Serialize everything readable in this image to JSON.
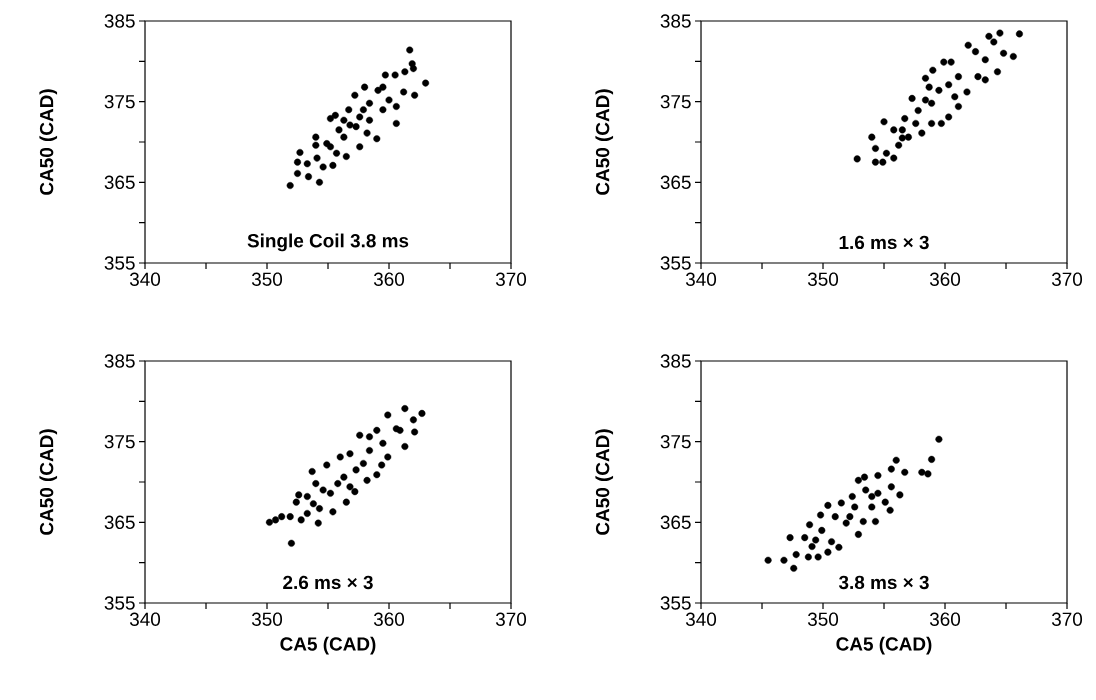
{
  "chart_data": [
    {
      "type": "scatter",
      "color": "#000000",
      "ylabel": "CA50 (CAD)",
      "annotations": [
        "Single Coil 3.8 ms"
      ],
      "xlim": [
        340,
        370
      ],
      "ylim": [
        355,
        385
      ],
      "xticks": [
        340,
        {
          "value": 345,
          "label": null
        },
        350,
        {
          "value": 355,
          "label": null
        },
        360,
        {
          "value": 365,
          "label": null
        },
        370
      ],
      "yticks": [
        355,
        {
          "value": 360,
          "label": null
        },
        365,
        {
          "value": 370,
          "label": null
        },
        375,
        {
          "value": 380,
          "label": null
        },
        385
      ],
      "x": [
        351.9,
        354.3,
        352.5,
        353.4,
        352.5,
        352.7,
        354.0,
        355.2,
        355.6,
        355.4,
        356.5,
        357.2,
        358.0,
        357.6,
        359.0,
        359.1,
        359.7,
        360.5,
        361.7,
        361.9,
        362.0,
        363.0,
        362.1,
        360.6,
        360.6,
        361.3,
        359.5,
        358.4,
        356.8,
        357.3,
        356.3,
        355.7,
        354.9,
        354.1,
        353.3,
        354.6,
        357.9,
        358.2,
        356.7,
        360.0,
        361.2,
        359.5,
        357.6,
        356.3,
        355.2,
        354.0,
        355.9,
        358.4
      ],
      "values": [
        364.6,
        365.0,
        366.1,
        365.7,
        367.5,
        368.7,
        370.6,
        372.9,
        373.3,
        367.1,
        368.2,
        375.8,
        376.8,
        369.4,
        370.4,
        376.4,
        378.3,
        378.3,
        381.4,
        379.7,
        379.1,
        377.3,
        375.8,
        372.3,
        374.4,
        378.7,
        374.0,
        372.7,
        372.1,
        371.9,
        370.6,
        368.6,
        369.8,
        368.0,
        367.3,
        366.9,
        374.0,
        371.1,
        374.0,
        375.2,
        376.2,
        376.8,
        373.1,
        372.7,
        369.4,
        369.6,
        371.5,
        374.8
      ]
    },
    {
      "type": "scatter",
      "color": "#000000",
      "ylabel": "CA50 (CAD)",
      "annotations": [
        "1.6 ms × 3"
      ],
      "xlim": [
        340,
        370
      ],
      "ylim": [
        355,
        385
      ],
      "xticks": [
        340,
        {
          "value": 345,
          "label": null
        },
        350,
        {
          "value": 355,
          "label": null
        },
        360,
        {
          "value": 365,
          "label": null
        },
        370
      ],
      "yticks": [
        355,
        {
          "value": 360,
          "label": null
        },
        365,
        {
          "value": 370,
          "label": null
        },
        375,
        {
          "value": 380,
          "label": null
        },
        385
      ],
      "x": [
        352.8,
        354.3,
        354.9,
        354.3,
        354.0,
        355.0,
        355.8,
        355.2,
        356.2,
        355.8,
        356.7,
        357.3,
        358.4,
        359.0,
        359.9,
        360.5,
        361.9,
        363.6,
        364.5,
        366.1,
        365.6,
        364.3,
        363.3,
        361.8,
        361.1,
        360.3,
        359.7,
        358.9,
        358.1,
        357.0,
        357.8,
        358.9,
        359.5,
        360.3,
        361.1,
        362.5,
        363.3,
        364.8,
        364.0,
        358.4,
        356.5,
        357.6,
        358.7,
        360.8,
        362.7,
        356.5
      ],
      "values": [
        367.9,
        367.5,
        367.5,
        369.2,
        370.6,
        372.5,
        368.0,
        368.6,
        369.6,
        371.5,
        372.9,
        375.4,
        377.9,
        378.9,
        379.9,
        379.9,
        382.0,
        383.1,
        383.5,
        383.4,
        380.6,
        378.7,
        377.7,
        376.2,
        374.4,
        373.1,
        372.3,
        372.3,
        371.1,
        370.6,
        373.9,
        374.8,
        376.4,
        377.1,
        378.1,
        381.2,
        380.2,
        381.0,
        382.4,
        375.2,
        371.5,
        372.3,
        376.8,
        375.6,
        378.1,
        370.5
      ]
    },
    {
      "type": "scatter",
      "color": "#000000",
      "xlabel": "CA5 (CAD)",
      "ylabel": "CA50 (CAD)",
      "annotations": [
        "2.6 ms × 3"
      ],
      "xlim": [
        340,
        370
      ],
      "ylim": [
        355,
        385
      ],
      "xticks": [
        340,
        {
          "value": 345,
          "label": null
        },
        350,
        {
          "value": 355,
          "label": null
        },
        360,
        {
          "value": 365,
          "label": null
        },
        370
      ],
      "yticks": [
        355,
        {
          "value": 360,
          "label": null
        },
        365,
        {
          "value": 370,
          "label": null
        },
        375,
        {
          "value": 380,
          "label": null
        },
        385
      ],
      "x": [
        350.2,
        350.7,
        351.2,
        352.0,
        351.9,
        352.8,
        354.2,
        352.4,
        352.6,
        353.7,
        353.3,
        354.3,
        355.4,
        356.5,
        357.2,
        354.9,
        356.0,
        356.8,
        357.6,
        358.4,
        359.0,
        359.9,
        360.6,
        361.3,
        361.3,
        362.1,
        362.0,
        362.7,
        359.9,
        359.0,
        358.2,
        359.4,
        357.9,
        355.8,
        354.6,
        354.0,
        355.2,
        356.3,
        357.3,
        358.4,
        359.5,
        353.3,
        353.8,
        356.8,
        360.9
      ],
      "values": [
        365.0,
        365.3,
        365.7,
        362.4,
        365.7,
        365.3,
        364.9,
        367.5,
        368.4,
        371.3,
        366.1,
        366.7,
        366.3,
        367.5,
        368.8,
        372.1,
        373.1,
        373.5,
        375.8,
        375.6,
        376.4,
        378.3,
        376.6,
        379.1,
        374.4,
        376.2,
        377.7,
        378.5,
        373.1,
        370.9,
        370.2,
        372.1,
        372.3,
        369.8,
        369.0,
        369.8,
        368.6,
        370.6,
        371.5,
        373.9,
        374.8,
        368.2,
        367.3,
        369.4,
        376.4
      ]
    },
    {
      "type": "scatter",
      "color": "#000000",
      "xlabel": "CA5 (CAD)",
      "ylabel": "CA50 (CAD)",
      "annotations": [
        "3.8 ms × 3"
      ],
      "xlim": [
        340,
        370
      ],
      "ylim": [
        355,
        385
      ],
      "xticks": [
        340,
        {
          "value": 345,
          "label": null
        },
        350,
        {
          "value": 355,
          "label": null
        },
        360,
        {
          "value": 365,
          "label": null
        },
        370
      ],
      "yticks": [
        355,
        {
          "value": 360,
          "label": null
        },
        365,
        {
          "value": 370,
          "label": null
        },
        375,
        {
          "value": 380,
          "label": null
        },
        385
      ],
      "x": [
        345.5,
        346.8,
        347.6,
        347.3,
        347.8,
        348.5,
        348.9,
        348.8,
        349.6,
        349.8,
        350.4,
        350.4,
        351.5,
        351.3,
        352.9,
        352.9,
        353.4,
        354.5,
        355.6,
        356.0,
        356.7,
        356.3,
        355.5,
        354.3,
        353.3,
        358.1,
        358.6,
        358.9,
        359.5,
        355.1,
        354.5,
        352.4,
        351.9,
        349.9,
        349.4,
        351.0,
        352.2,
        353.5,
        354.0,
        350.7,
        349.1,
        355.6,
        352.6,
        354.0
      ],
      "values": [
        360.3,
        360.3,
        359.3,
        363.1,
        361.0,
        363.1,
        364.7,
        360.7,
        360.7,
        365.9,
        361.3,
        367.1,
        367.4,
        361.9,
        363.5,
        370.2,
        370.6,
        370.8,
        371.6,
        372.7,
        371.2,
        368.4,
        366.5,
        365.1,
        365.1,
        371.2,
        371.0,
        372.8,
        375.3,
        367.5,
        368.6,
        368.2,
        364.9,
        364.0,
        362.8,
        365.7,
        365.7,
        369.0,
        366.9,
        362.6,
        362.0,
        369.4,
        366.9,
        368.2
      ]
    }
  ]
}
